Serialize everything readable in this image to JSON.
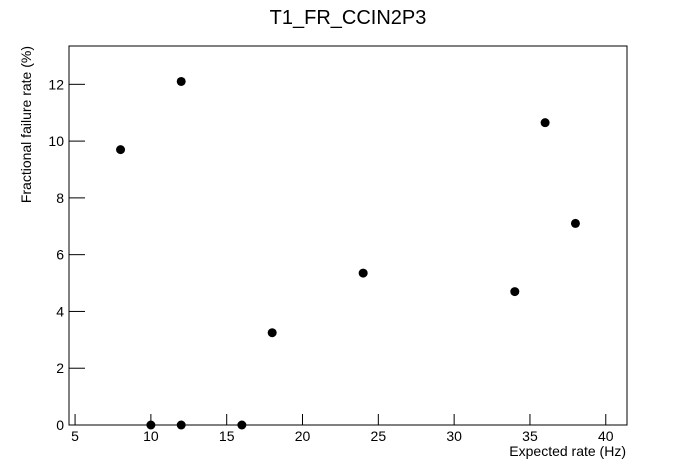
{
  "chart_data": {
    "type": "scatter",
    "title": "T1_FR_CCIN2P3",
    "x_label": "Expected rate (Hz)",
    "y_label": "Fractional failure rate (%)",
    "x": [
      8,
      10,
      12,
      12,
      16,
      18,
      24,
      34,
      36,
      38
    ],
    "values": [
      9.7,
      0,
      12.1,
      0,
      0,
      3.25,
      5.35,
      4.7,
      10.65,
      7.1
    ],
    "color": "#000000",
    "xlim": [
      4.6,
      41.4
    ],
    "ylim": [
      0,
      13.35
    ],
    "xticks": [
      5,
      10,
      15,
      20,
      25,
      30,
      35,
      40
    ],
    "yticks": [
      0,
      2,
      4,
      6,
      8,
      10,
      12
    ]
  }
}
